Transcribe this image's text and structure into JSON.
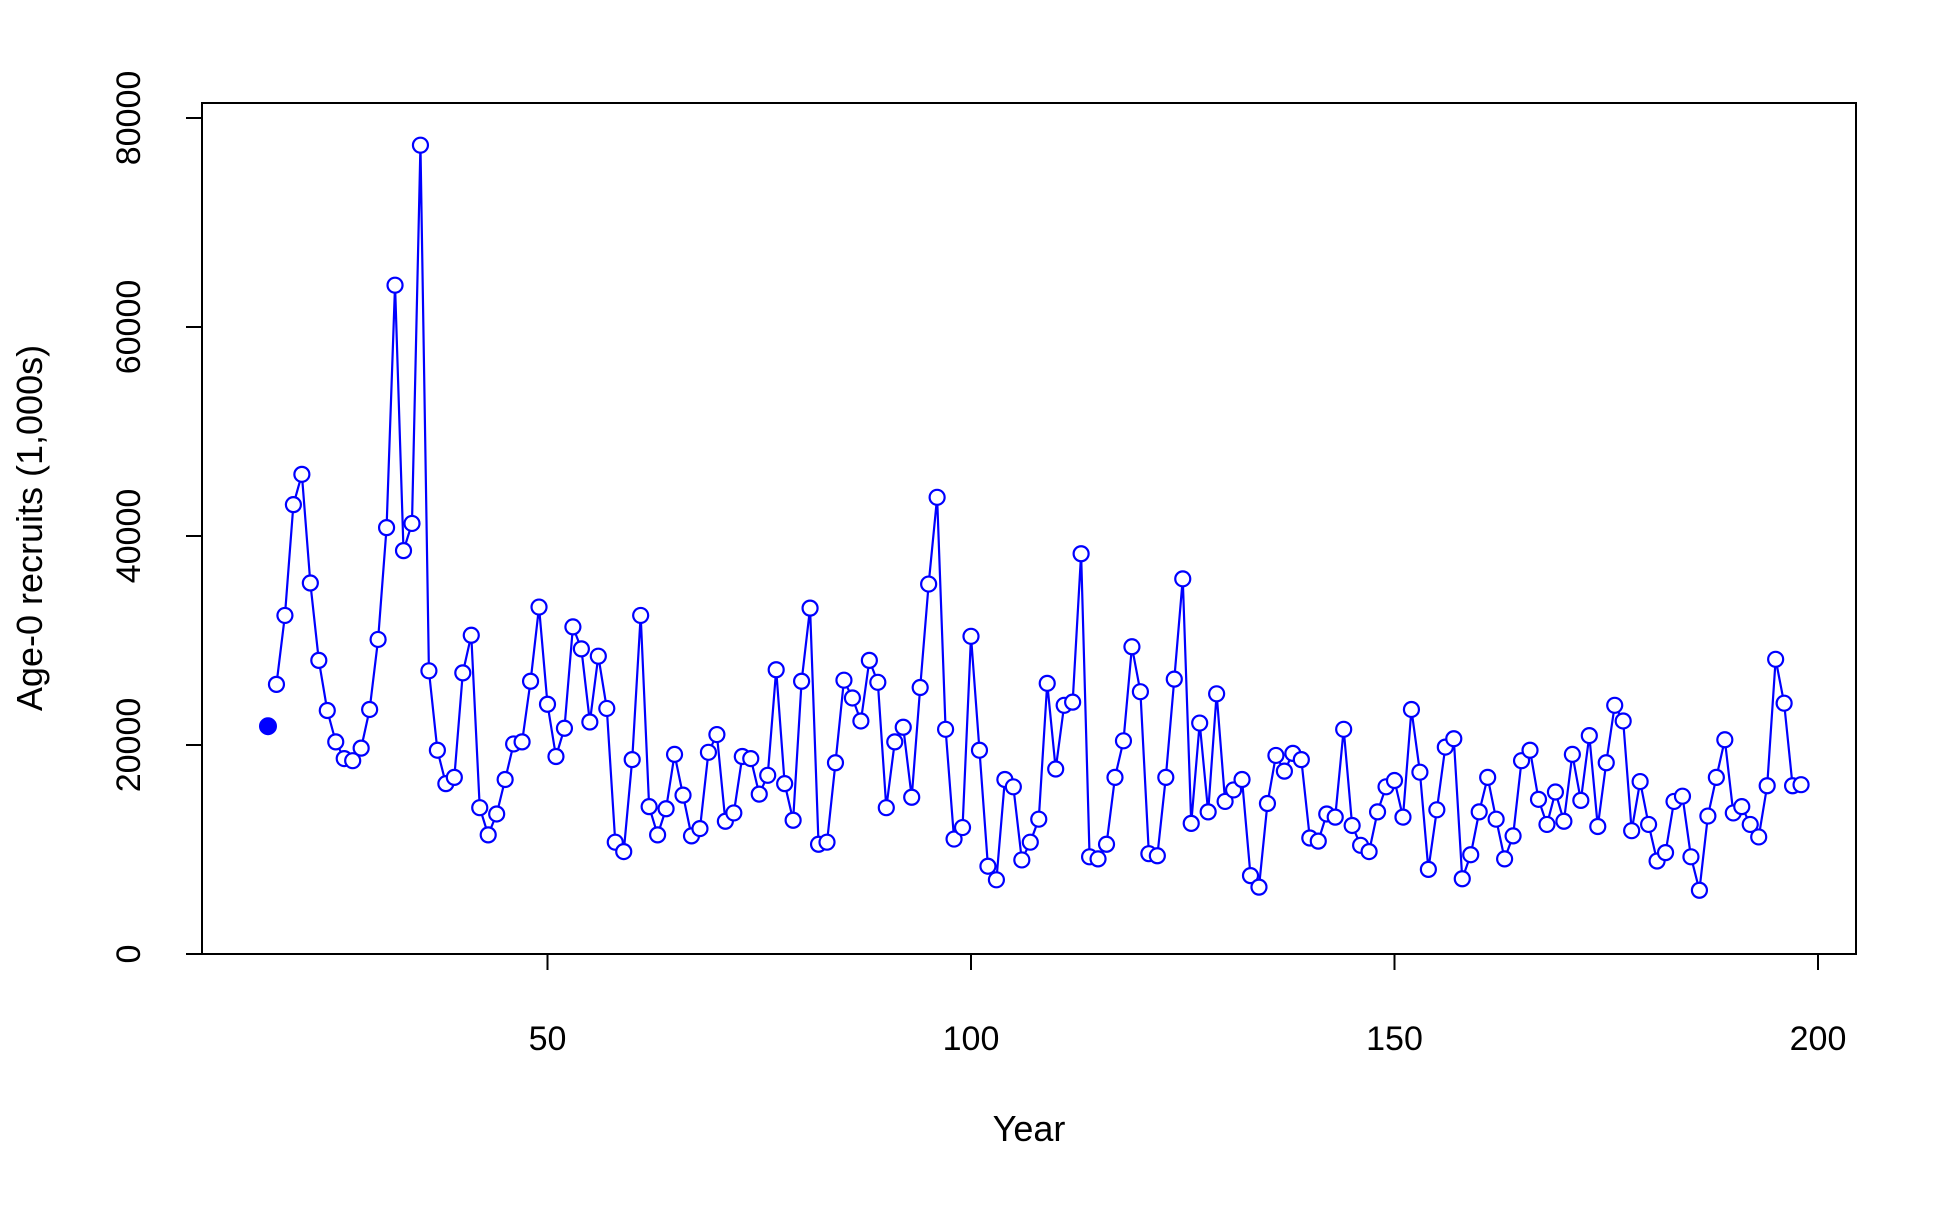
{
  "chart_data": {
    "type": "line",
    "title": "",
    "xlabel": "Year",
    "ylabel": "Age-0 recruits (1,000s)",
    "xlim": [
      7,
      204
    ],
    "ylim": [
      0,
      80000
    ],
    "xticks": [
      50,
      100,
      150,
      200
    ],
    "yticks": [
      0,
      20000,
      40000,
      60000,
      80000
    ],
    "x_tick_labels": [
      "50",
      "100",
      "150",
      "200"
    ],
    "y_tick_labels": [
      "0",
      "20000",
      "40000",
      "60000",
      "80000"
    ],
    "grid": false,
    "legend": "none",
    "series_color": "#0000FF",
    "initial_point": {
      "x": 17,
      "y": 21800
    },
    "series": [
      {
        "x_start": 18,
        "values": [
          25800,
          32400,
          43000,
          45900,
          35500,
          28100,
          23300,
          20300,
          18700,
          18500,
          19700,
          23400,
          30100,
          40800,
          64000,
          38600,
          41200,
          77400,
          27100,
          19500,
          16300,
          16900,
          26900,
          30500,
          14000,
          11400,
          13400,
          16700,
          20100,
          20300,
          26100,
          33200,
          23900,
          18900,
          21600,
          31300,
          29200,
          22200,
          28500,
          23500,
          10700,
          9800,
          18600,
          32400,
          14100,
          11400,
          13900,
          19100,
          15200,
          11300,
          12000,
          19300,
          21000,
          12700,
          13500,
          18900,
          18700,
          15300,
          17100,
          27200,
          16300,
          12800,
          26100,
          33100,
          10500,
          10700,
          18300,
          26200,
          24500,
          22300,
          28100,
          26000,
          14000,
          20300,
          21700,
          15000,
          25500,
          35400,
          43700,
          21500,
          11000,
          12100,
          30400,
          19500,
          8400,
          7100,
          16700,
          16000,
          9000,
          10700,
          12900,
          25900,
          17700,
          23800,
          24100,
          38300,
          9300,
          9100,
          10500,
          16900,
          20400,
          29400,
          25100,
          9600,
          9400,
          16900,
          26300,
          35900,
          12500,
          22100,
          13600,
          24900,
          14600,
          15700,
          16700,
          7500,
          6400,
          14400,
          19000,
          17500,
          19200,
          18600,
          11100,
          10800,
          13400,
          13100,
          21500,
          12300,
          10400,
          9800,
          13600,
          16000,
          16600,
          13100,
          23400,
          17400,
          8100,
          13800,
          19800,
          20600,
          7200,
          9500,
          13600,
          16900,
          12900,
          9100,
          11300,
          18500,
          19500,
          14800,
          12400,
          15500,
          12700,
          19100,
          14700,
          20900,
          12200,
          18300,
          23800,
          22300,
          11800,
          16500,
          12400,
          8900,
          9700,
          14600,
          15100,
          9300,
          6100,
          13200,
          16900,
          20500,
          13500,
          14100,
          12400,
          11200,
          16100,
          28200,
          24000,
          16100,
          16200
        ]
      }
    ]
  }
}
